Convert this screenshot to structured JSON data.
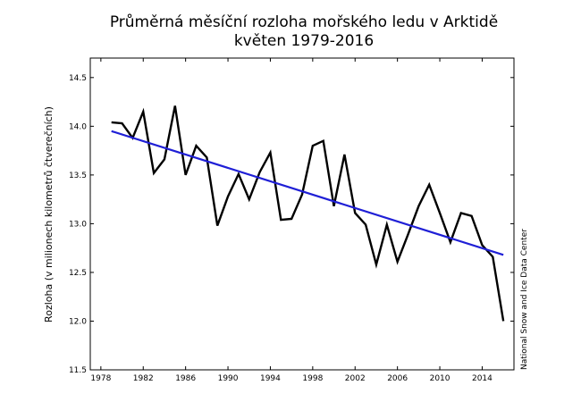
{
  "chart_data": {
    "type": "line",
    "title": "Průměrná měsíční rozloha mořského ledu v Arktidě",
    "subtitle": "květen 1979-2016",
    "xlabel": "",
    "ylabel": "Rozloha  (v milionech kilometrů čtverečních)",
    "credit": "National Snow and Ice Data Center",
    "xlim": [
      1977,
      2017
    ],
    "ylim": [
      11.5,
      14.7
    ],
    "x_ticks": [
      1978,
      1982,
      1986,
      1990,
      1994,
      1998,
      2002,
      2006,
      2010,
      2014
    ],
    "y_ticks": [
      11.5,
      12.0,
      12.5,
      13.0,
      13.5,
      14.0,
      14.5
    ],
    "grid": false,
    "series": [
      {
        "color": "#000000",
        "x": [
          1979,
          1980,
          1981,
          1982,
          1983,
          1984,
          1985,
          1986,
          1987,
          1988,
          1989,
          1990,
          1991,
          1992,
          1993,
          1994,
          1995,
          1996,
          1997,
          1998,
          1999,
          2000,
          2001,
          2002,
          2003,
          2004,
          2005,
          2006,
          2007,
          2008,
          2009,
          2010,
          2011,
          2012,
          2013,
          2014,
          2015,
          2016
        ],
        "values": [
          14.04,
          14.03,
          13.88,
          14.15,
          13.52,
          13.66,
          14.21,
          13.5,
          13.8,
          13.68,
          12.98,
          13.28,
          13.51,
          13.25,
          13.53,
          13.73,
          13.04,
          13.05,
          13.3,
          13.8,
          13.85,
          13.18,
          13.71,
          13.11,
          12.99,
          12.58,
          12.99,
          12.61,
          12.89,
          13.18,
          13.4,
          13.11,
          12.81,
          13.11,
          13.08,
          12.78,
          12.66,
          12.0
        ]
      },
      {
        "color": "#1f1fd6",
        "x": [
          1979,
          2016
        ],
        "values": [
          13.95,
          12.68
        ]
      }
    ]
  }
}
